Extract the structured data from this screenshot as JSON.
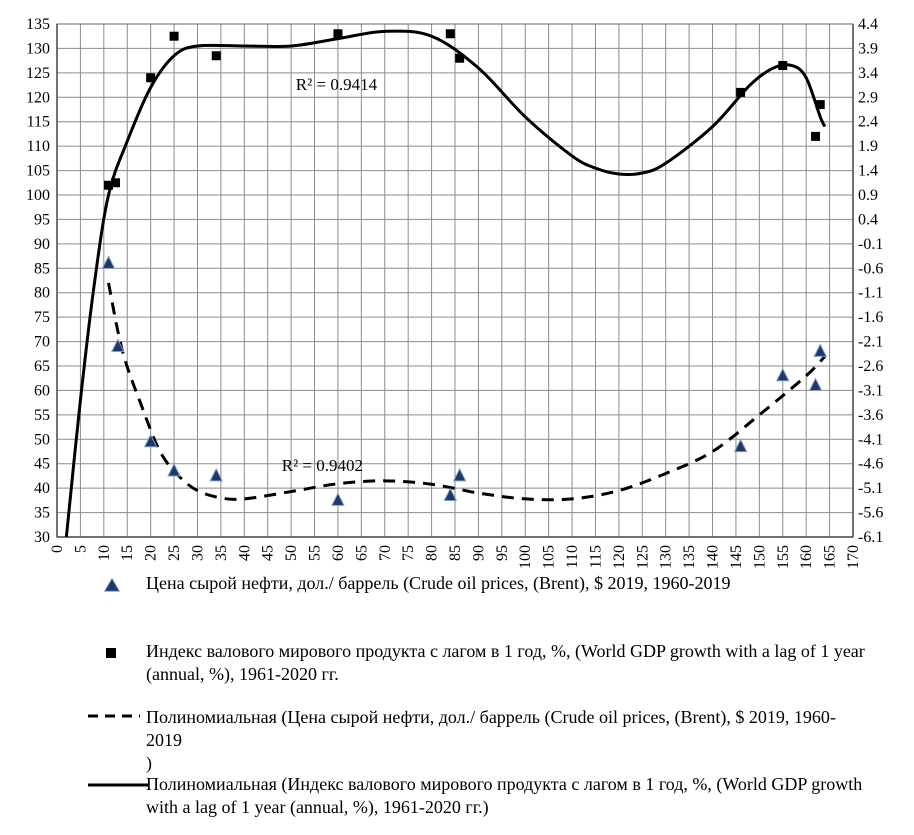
{
  "chart_data": {
    "type": "scatter",
    "x_ticks": [
      "0",
      "5",
      "10",
      "15",
      "20",
      "25",
      "30",
      "35",
      "40",
      "45",
      "50",
      "55",
      "60",
      "65",
      "70",
      "75",
      "80",
      "85",
      "90",
      "95",
      "100",
      "105",
      "110",
      "115",
      "120",
      "125",
      "130",
      "135",
      "140",
      "145",
      "150",
      "155",
      "160",
      "165",
      "170"
    ],
    "y_left_ticks": [
      "30",
      "35",
      "40",
      "45",
      "50",
      "55",
      "60",
      "65",
      "70",
      "75",
      "80",
      "85",
      "90",
      "95",
      "100",
      "105",
      "110",
      "115",
      "120",
      "125",
      "130",
      "135"
    ],
    "y_right_ticks": [
      "-6.1",
      "-5.6",
      "-5.1",
      "-4.6",
      "-4.1",
      "-3.6",
      "-3.1",
      "-2.6",
      "-2.1",
      "-1.6",
      "-1.1",
      "-0.6",
      "-0.1",
      "0.4",
      "0.9",
      "1.4",
      "1.9",
      "2.4",
      "2.9",
      "3.4",
      "3.9",
      "4.4"
    ],
    "xlim": [
      0,
      170
    ],
    "ylim_left": [
      30,
      135
    ],
    "ylim_right": [
      -6.1,
      4.4
    ],
    "grid": true,
    "series": [
      {
        "name": "Цена сырой нефти, дол./ баррель (Crude oil prices, (Brent), $ 2019, 1960-2019",
        "marker": "triangle",
        "axis": "left",
        "color": "#1f3864",
        "points": [
          [
            11,
            86
          ],
          [
            13,
            69
          ],
          [
            20,
            49.5
          ],
          [
            25,
            43.5
          ],
          [
            34,
            42.5
          ],
          [
            60,
            37.5
          ],
          [
            84,
            38.5
          ],
          [
            86,
            42.5
          ],
          [
            146,
            48.5
          ],
          [
            155,
            63
          ],
          [
            162,
            61
          ],
          [
            163,
            68
          ]
        ]
      },
      {
        "name": "Индекс валового мирового продукта с лагом в 1 год, %, (World GDP growth with a lag of 1 year (annual, %), 1961-2020 гг.",
        "marker": "square",
        "axis": "left",
        "color": "#000000",
        "points": [
          [
            11,
            102
          ],
          [
            12.5,
            102.5
          ],
          [
            20,
            124
          ],
          [
            25,
            132.5
          ],
          [
            34,
            128.5
          ],
          [
            60,
            133
          ],
          [
            84,
            133
          ],
          [
            86,
            128
          ],
          [
            146,
            121
          ],
          [
            155,
            126.5
          ],
          [
            162,
            112
          ],
          [
            163,
            118.5
          ]
        ]
      }
    ],
    "trendlines": [
      {
        "name": "Полиномиальная (Цена сырой нефти, дол./ баррель (Crude oil prices, (Brent), $ 2019, 1960-2019\n)",
        "style": "dashed",
        "r2_label": "R² = 0.9402",
        "points": [
          [
            11,
            82
          ],
          [
            14,
            68
          ],
          [
            18,
            57
          ],
          [
            22,
            47.5
          ],
          [
            26,
            42.5
          ],
          [
            30,
            39.5
          ],
          [
            35,
            38
          ],
          [
            40,
            37.8
          ],
          [
            50,
            39.3
          ],
          [
            60,
            40.9
          ],
          [
            70,
            41.5
          ],
          [
            80,
            40.8
          ],
          [
            90,
            39
          ],
          [
            100,
            37.8
          ],
          [
            110,
            37.8
          ],
          [
            120,
            39.5
          ],
          [
            130,
            43
          ],
          [
            140,
            47.5
          ],
          [
            150,
            55
          ],
          [
            160,
            63
          ],
          [
            164,
            67
          ]
        ]
      },
      {
        "name": "Полиномиальная (Индекс валового мирового продукта с лагом в 1 год, %, (World GDP growth with a lag of 1 year (annual, %), 1961-2020 гг.)",
        "style": "solid",
        "r2_label": "R² = 0.9414",
        "points": [
          [
            2,
            30
          ],
          [
            5,
            58
          ],
          [
            8,
            82
          ],
          [
            11,
            100
          ],
          [
            15,
            111
          ],
          [
            20,
            122
          ],
          [
            25,
            128.5
          ],
          [
            30,
            130.5
          ],
          [
            40,
            130.5
          ],
          [
            50,
            130.5
          ],
          [
            60,
            132
          ],
          [
            70,
            133.5
          ],
          [
            80,
            132.5
          ],
          [
            90,
            126
          ],
          [
            100,
            116
          ],
          [
            110,
            108
          ],
          [
            115,
            105.5
          ],
          [
            120,
            104.3
          ],
          [
            125,
            104.5
          ],
          [
            130,
            106.5
          ],
          [
            140,
            114
          ],
          [
            148,
            122.5
          ],
          [
            153,
            126
          ],
          [
            157,
            126.5
          ],
          [
            160,
            124
          ],
          [
            163,
            116
          ],
          [
            164,
            114
          ]
        ]
      }
    ]
  }
}
